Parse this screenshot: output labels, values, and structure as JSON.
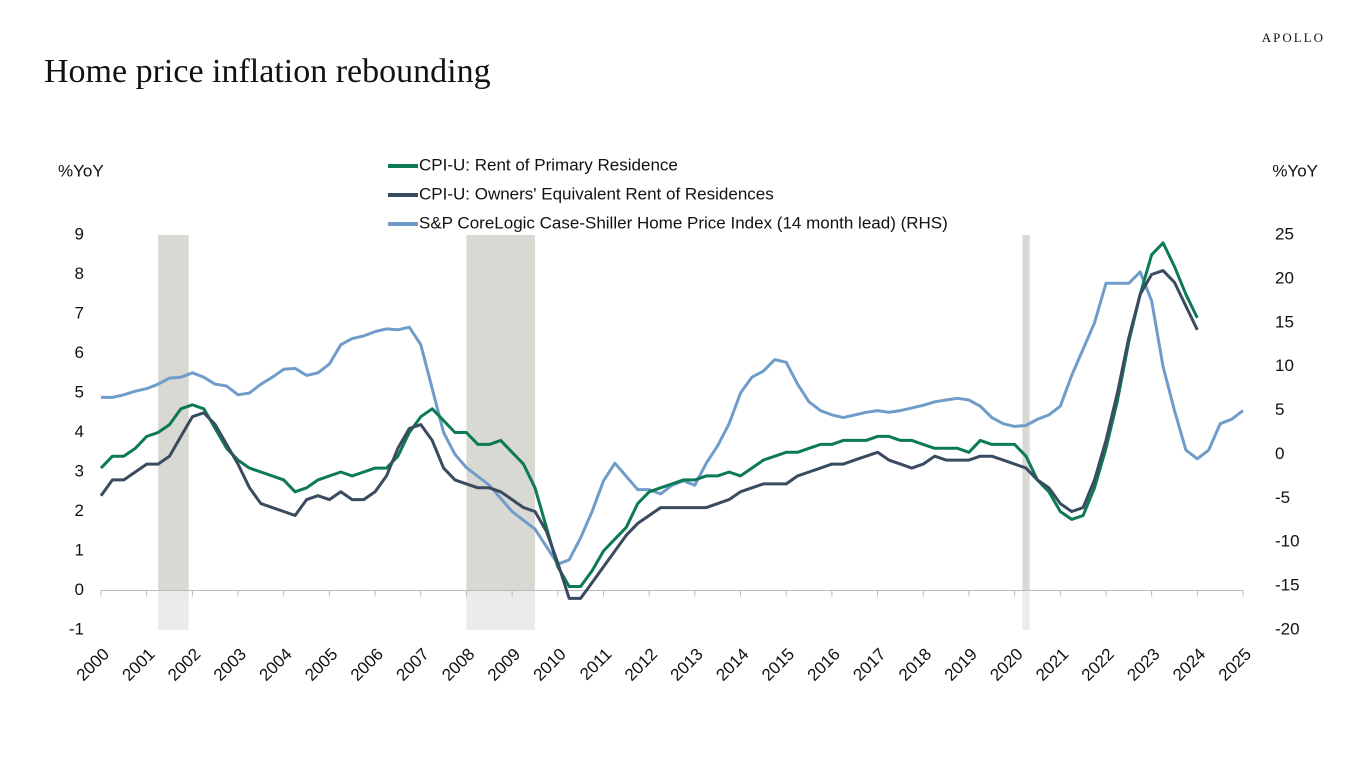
{
  "brand": "APOLLO",
  "chart_data": {
    "type": "line",
    "title": "Home price inflation rebounding",
    "y_label": "%YoY",
    "y2_label": "%YoY",
    "x": [
      2000,
      2000.25,
      2000.5,
      2000.75,
      2001,
      2001.25,
      2001.5,
      2001.75,
      2002,
      2002.25,
      2002.5,
      2002.75,
      2003,
      2003.25,
      2003.5,
      2003.75,
      2004,
      2004.25,
      2004.5,
      2004.75,
      2005,
      2005.25,
      2005.5,
      2005.75,
      2006,
      2006.25,
      2006.5,
      2006.75,
      2007,
      2007.25,
      2007.5,
      2007.75,
      2008,
      2008.25,
      2008.5,
      2008.75,
      2009,
      2009.25,
      2009.5,
      2009.75,
      2010,
      2010.25,
      2010.5,
      2010.75,
      2011,
      2011.25,
      2011.5,
      2011.75,
      2012,
      2012.25,
      2012.5,
      2012.75,
      2013,
      2013.25,
      2013.5,
      2013.75,
      2014,
      2014.25,
      2014.5,
      2014.75,
      2015,
      2015.25,
      2015.5,
      2015.75,
      2016,
      2016.25,
      2016.5,
      2016.75,
      2017,
      2017.25,
      2017.5,
      2017.75,
      2018,
      2018.25,
      2018.5,
      2018.75,
      2019,
      2019.25,
      2019.5,
      2019.75,
      2020,
      2020.25,
      2020.5,
      2020.75,
      2021,
      2021.25,
      2021.5,
      2021.75,
      2022,
      2022.25,
      2022.5,
      2022.75,
      2023,
      2023.25,
      2023.5,
      2023.75,
      2024,
      2024.25,
      2024.5,
      2024.75,
      2025
    ],
    "series": [
      {
        "name": "CPI-U: Rent of Primary Residence",
        "color": "#0b7a55",
        "values": [
          3.1,
          3.4,
          3.4,
          3.6,
          3.9,
          4.0,
          4.2,
          4.6,
          4.7,
          4.6,
          4.1,
          3.6,
          3.3,
          3.1,
          3.0,
          2.9,
          2.8,
          2.5,
          2.6,
          2.8,
          2.9,
          3.0,
          2.9,
          3.0,
          3.1,
          3.1,
          3.4,
          4.0,
          4.4,
          4.6,
          4.3,
          4.0,
          4.0,
          3.7,
          3.7,
          3.8,
          3.5,
          3.2,
          2.6,
          1.6,
          0.6,
          0.1,
          0.1,
          0.5,
          1.0,
          1.3,
          1.6,
          2.2,
          2.5,
          2.6,
          2.7,
          2.8,
          2.8,
          2.9,
          2.9,
          3.0,
          2.9,
          3.1,
          3.3,
          3.4,
          3.5,
          3.5,
          3.6,
          3.7,
          3.7,
          3.8,
          3.8,
          3.8,
          3.9,
          3.9,
          3.8,
          3.8,
          3.7,
          3.6,
          3.6,
          3.6,
          3.5,
          3.8,
          3.7,
          3.7,
          3.7,
          3.4,
          2.8,
          2.5,
          2.0,
          1.8,
          1.9,
          2.6,
          3.6,
          4.8,
          6.3,
          7.5,
          8.5,
          8.8,
          8.2,
          7.5,
          6.9,
          null,
          null,
          null,
          null
        ]
      },
      {
        "name": "CPI-U: Owners' Equivalent Rent of Residences",
        "color": "#3a4a5f",
        "values": [
          2.4,
          2.8,
          2.8,
          3.0,
          3.2,
          3.2,
          3.4,
          3.9,
          4.4,
          4.5,
          4.2,
          3.7,
          3.2,
          2.6,
          2.2,
          2.1,
          2.0,
          1.9,
          2.3,
          2.4,
          2.3,
          2.5,
          2.3,
          2.3,
          2.5,
          2.9,
          3.6,
          4.1,
          4.2,
          3.8,
          3.1,
          2.8,
          2.7,
          2.6,
          2.6,
          2.5,
          2.3,
          2.1,
          2.0,
          1.5,
          0.7,
          -0.2,
          -0.2,
          0.2,
          0.6,
          1.0,
          1.4,
          1.7,
          1.9,
          2.1,
          2.1,
          2.1,
          2.1,
          2.1,
          2.2,
          2.3,
          2.5,
          2.6,
          2.7,
          2.7,
          2.7,
          2.9,
          3.0,
          3.1,
          3.2,
          3.2,
          3.3,
          3.4,
          3.5,
          3.3,
          3.2,
          3.1,
          3.2,
          3.4,
          3.3,
          3.3,
          3.3,
          3.4,
          3.4,
          3.3,
          3.2,
          3.1,
          2.8,
          2.6,
          2.2,
          2.0,
          2.1,
          2.8,
          3.8,
          5.0,
          6.4,
          7.5,
          8.0,
          8.1,
          7.8,
          7.2,
          6.6,
          null,
          null,
          null,
          null
        ]
      },
      {
        "name": "S&P CoreLogic Case-Shiller Home Price Index (14 month lead) (RHS)",
        "color": "#6f9cc9",
        "axis": "y2",
        "values": [
          6.5,
          6.5,
          6.8,
          7.2,
          7.5,
          8.0,
          8.7,
          8.8,
          9.3,
          8.8,
          8.0,
          7.8,
          6.8,
          7.0,
          8.0,
          8.8,
          9.7,
          9.8,
          9.0,
          9.3,
          10.3,
          12.5,
          13.2,
          13.5,
          14.0,
          14.3,
          14.2,
          14.5,
          12.5,
          7.5,
          2.5,
          0.0,
          -1.5,
          -2.5,
          -3.5,
          -5.0,
          -6.5,
          -7.5,
          -8.5,
          -10.5,
          -12.5,
          -12.0,
          -9.5,
          -6.5,
          -3.0,
          -1.0,
          -2.5,
          -4.0,
          -4.0,
          -4.5,
          -3.5,
          -3.0,
          -3.5,
          -1.0,
          1.0,
          3.5,
          7.0,
          8.8,
          9.5,
          10.8,
          10.5,
          8.0,
          6.0,
          5.0,
          4.5,
          4.2,
          4.5,
          4.8,
          5.0,
          4.8,
          5.0,
          5.3,
          5.6,
          6.0,
          6.2,
          6.4,
          6.2,
          5.5,
          4.2,
          3.5,
          3.2,
          3.3,
          4.0,
          4.5,
          5.5,
          9.0,
          12.0,
          15.0,
          19.5,
          19.5,
          19.5,
          20.8,
          17.5,
          10.0,
          5.0,
          0.5,
          -0.5,
          0.5,
          3.5,
          4.0,
          5.0
        ]
      }
    ],
    "recessions": [
      {
        "start": 2001.25,
        "end": 2001.92
      },
      {
        "start": 2008.0,
        "end": 2009.5
      },
      {
        "start": 2020.17,
        "end": 2020.33
      }
    ],
    "xlim": [
      2000,
      2025
    ],
    "xticks": [
      2000,
      2001,
      2002,
      2003,
      2004,
      2005,
      2006,
      2007,
      2008,
      2009,
      2010,
      2011,
      2012,
      2013,
      2014,
      2015,
      2016,
      2017,
      2018,
      2019,
      2020,
      2021,
      2022,
      2023,
      2024,
      2025
    ],
    "ylim": [
      -1,
      9
    ],
    "yticks": [
      -1,
      0,
      1,
      2,
      3,
      4,
      5,
      6,
      7,
      8,
      9
    ],
    "y2lim": [
      -20,
      25
    ],
    "y2ticks": [
      -20,
      -15,
      -10,
      -5,
      0,
      5,
      10,
      15,
      20,
      25
    ],
    "grid": false,
    "legend": "top"
  }
}
